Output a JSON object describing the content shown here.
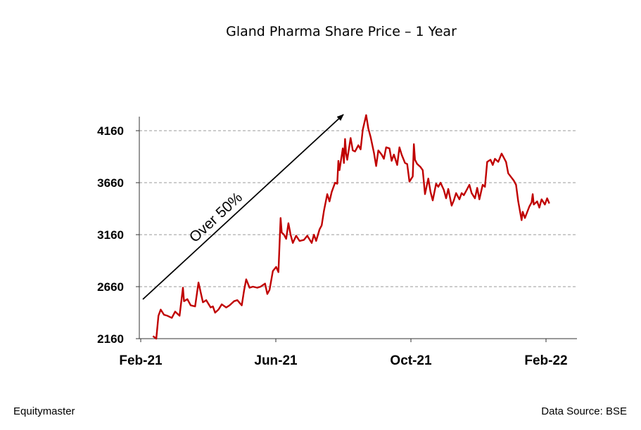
{
  "footer": {
    "brand": "Equitymaster",
    "source": "Data Source: BSE"
  },
  "chart_data": {
    "type": "line",
    "title": "Gland Pharma Share Price – 1 Year",
    "xlabel": "",
    "ylabel": "",
    "ylim": [
      2160,
      4160
    ],
    "yticks": [
      2160,
      2660,
      3160,
      3660,
      4160
    ],
    "xticks": [
      "Feb-21",
      "Jun-21",
      "Oct-21",
      "Feb-22"
    ],
    "xlim": [
      "2021-02-01",
      "2022-02-10"
    ],
    "grid": "horizontal dashed",
    "color": "#C00000",
    "annotation": "Over 50%",
    "series": [
      {
        "name": "",
        "values": [
          [
            "2021-02-12",
            2185
          ],
          [
            "2021-02-15",
            2160
          ],
          [
            "2021-02-17",
            2380
          ],
          [
            "2021-02-19",
            2440
          ],
          [
            "2021-02-22",
            2390
          ],
          [
            "2021-02-25",
            2380
          ],
          [
            "2021-03-01",
            2360
          ],
          [
            "2021-03-04",
            2420
          ],
          [
            "2021-03-08",
            2380
          ],
          [
            "2021-03-11",
            2650
          ],
          [
            "2021-03-12",
            2520
          ],
          [
            "2021-03-15",
            2540
          ],
          [
            "2021-03-18",
            2480
          ],
          [
            "2021-03-22",
            2470
          ],
          [
            "2021-03-25",
            2700
          ],
          [
            "2021-03-29",
            2510
          ],
          [
            "2021-04-01",
            2530
          ],
          [
            "2021-04-05",
            2460
          ],
          [
            "2021-04-07",
            2470
          ],
          [
            "2021-04-09",
            2410
          ],
          [
            "2021-04-12",
            2440
          ],
          [
            "2021-04-15",
            2490
          ],
          [
            "2021-04-19",
            2460
          ],
          [
            "2021-04-22",
            2480
          ],
          [
            "2021-04-26",
            2520
          ],
          [
            "2021-04-29",
            2530
          ],
          [
            "2021-05-03",
            2480
          ],
          [
            "2021-05-05",
            2620
          ],
          [
            "2021-05-07",
            2730
          ],
          [
            "2021-05-10",
            2650
          ],
          [
            "2021-05-13",
            2660
          ],
          [
            "2021-05-17",
            2650
          ],
          [
            "2021-05-20",
            2660
          ],
          [
            "2021-05-24",
            2690
          ],
          [
            "2021-05-26",
            2590
          ],
          [
            "2021-05-28",
            2630
          ],
          [
            "2021-05-31",
            2810
          ],
          [
            "2021-06-03",
            2850
          ],
          [
            "2021-06-05",
            2800
          ],
          [
            "2021-06-07",
            3320
          ],
          [
            "2021-06-08",
            3180
          ],
          [
            "2021-06-10",
            3160
          ],
          [
            "2021-06-12",
            3120
          ],
          [
            "2021-06-14",
            3270
          ],
          [
            "2021-06-16",
            3160
          ],
          [
            "2021-06-18",
            3080
          ],
          [
            "2021-06-21",
            3150
          ],
          [
            "2021-06-24",
            3100
          ],
          [
            "2021-06-28",
            3110
          ],
          [
            "2021-07-01",
            3150
          ],
          [
            "2021-07-05",
            3080
          ],
          [
            "2021-07-07",
            3160
          ],
          [
            "2021-07-09",
            3100
          ],
          [
            "2021-07-12",
            3210
          ],
          [
            "2021-07-14",
            3250
          ],
          [
            "2021-07-16",
            3390
          ],
          [
            "2021-07-19",
            3550
          ],
          [
            "2021-07-21",
            3480
          ],
          [
            "2021-07-23",
            3570
          ],
          [
            "2021-07-26",
            3660
          ],
          [
            "2021-07-28",
            3650
          ],
          [
            "2021-07-29",
            3870
          ],
          [
            "2021-07-30",
            3780
          ],
          [
            "2021-08-02",
            3990
          ],
          [
            "2021-08-03",
            3850
          ],
          [
            "2021-08-04",
            4080
          ],
          [
            "2021-08-05",
            3940
          ],
          [
            "2021-08-06",
            3880
          ],
          [
            "2021-08-09",
            4090
          ],
          [
            "2021-08-11",
            3970
          ],
          [
            "2021-08-13",
            3960
          ],
          [
            "2021-08-16",
            4020
          ],
          [
            "2021-08-18",
            3980
          ],
          [
            "2021-08-20",
            4170
          ],
          [
            "2021-08-23",
            4310
          ],
          [
            "2021-08-25",
            4180
          ],
          [
            "2021-08-27",
            4100
          ],
          [
            "2021-08-30",
            3950
          ],
          [
            "2021-09-01",
            3820
          ],
          [
            "2021-09-03",
            3970
          ],
          [
            "2021-09-06",
            3930
          ],
          [
            "2021-09-08",
            3890
          ],
          [
            "2021-09-10",
            4000
          ],
          [
            "2021-09-13",
            3990
          ],
          [
            "2021-09-15",
            3870
          ],
          [
            "2021-09-17",
            3930
          ],
          [
            "2021-09-20",
            3830
          ],
          [
            "2021-09-22",
            4000
          ],
          [
            "2021-09-24",
            3930
          ],
          [
            "2021-09-27",
            3850
          ],
          [
            "2021-09-29",
            3840
          ],
          [
            "2021-10-01",
            3670
          ],
          [
            "2021-10-04",
            3720
          ],
          [
            "2021-10-05",
            4030
          ],
          [
            "2021-10-06",
            3880
          ],
          [
            "2021-10-08",
            3840
          ],
          [
            "2021-10-11",
            3810
          ],
          [
            "2021-10-13",
            3780
          ],
          [
            "2021-10-15",
            3550
          ],
          [
            "2021-10-18",
            3700
          ],
          [
            "2021-10-20",
            3570
          ],
          [
            "2021-10-22",
            3490
          ],
          [
            "2021-10-25",
            3650
          ],
          [
            "2021-10-27",
            3620
          ],
          [
            "2021-10-29",
            3660
          ],
          [
            "2021-11-01",
            3590
          ],
          [
            "2021-11-03",
            3510
          ],
          [
            "2021-11-05",
            3600
          ],
          [
            "2021-11-08",
            3440
          ],
          [
            "2021-11-10",
            3490
          ],
          [
            "2021-11-12",
            3560
          ],
          [
            "2021-11-15",
            3500
          ],
          [
            "2021-11-17",
            3560
          ],
          [
            "2021-11-19",
            3540
          ],
          [
            "2021-11-22",
            3600
          ],
          [
            "2021-11-24",
            3640
          ],
          [
            "2021-11-26",
            3560
          ],
          [
            "2021-11-29",
            3510
          ],
          [
            "2021-12-01",
            3610
          ],
          [
            "2021-12-03",
            3500
          ],
          [
            "2021-12-06",
            3640
          ],
          [
            "2021-12-08",
            3620
          ],
          [
            "2021-12-10",
            3860
          ],
          [
            "2021-12-13",
            3880
          ],
          [
            "2021-12-15",
            3830
          ],
          [
            "2021-12-17",
            3890
          ],
          [
            "2021-12-20",
            3860
          ],
          [
            "2021-12-23",
            3940
          ],
          [
            "2021-12-27",
            3860
          ],
          [
            "2021-12-29",
            3750
          ],
          [
            "2022-01-03",
            3680
          ],
          [
            "2022-01-05",
            3640
          ],
          [
            "2022-01-07",
            3480
          ],
          [
            "2022-01-10",
            3300
          ],
          [
            "2022-01-11",
            3380
          ],
          [
            "2022-01-13",
            3320
          ],
          [
            "2022-01-17",
            3430
          ],
          [
            "2022-01-19",
            3470
          ],
          [
            "2022-01-20",
            3550
          ],
          [
            "2022-01-21",
            3450
          ],
          [
            "2022-01-24",
            3480
          ],
          [
            "2022-01-26",
            3420
          ],
          [
            "2022-01-28",
            3500
          ],
          [
            "2022-01-31",
            3450
          ],
          [
            "2022-02-02",
            3510
          ],
          [
            "2022-02-04",
            3460
          ]
        ]
      }
    ]
  }
}
